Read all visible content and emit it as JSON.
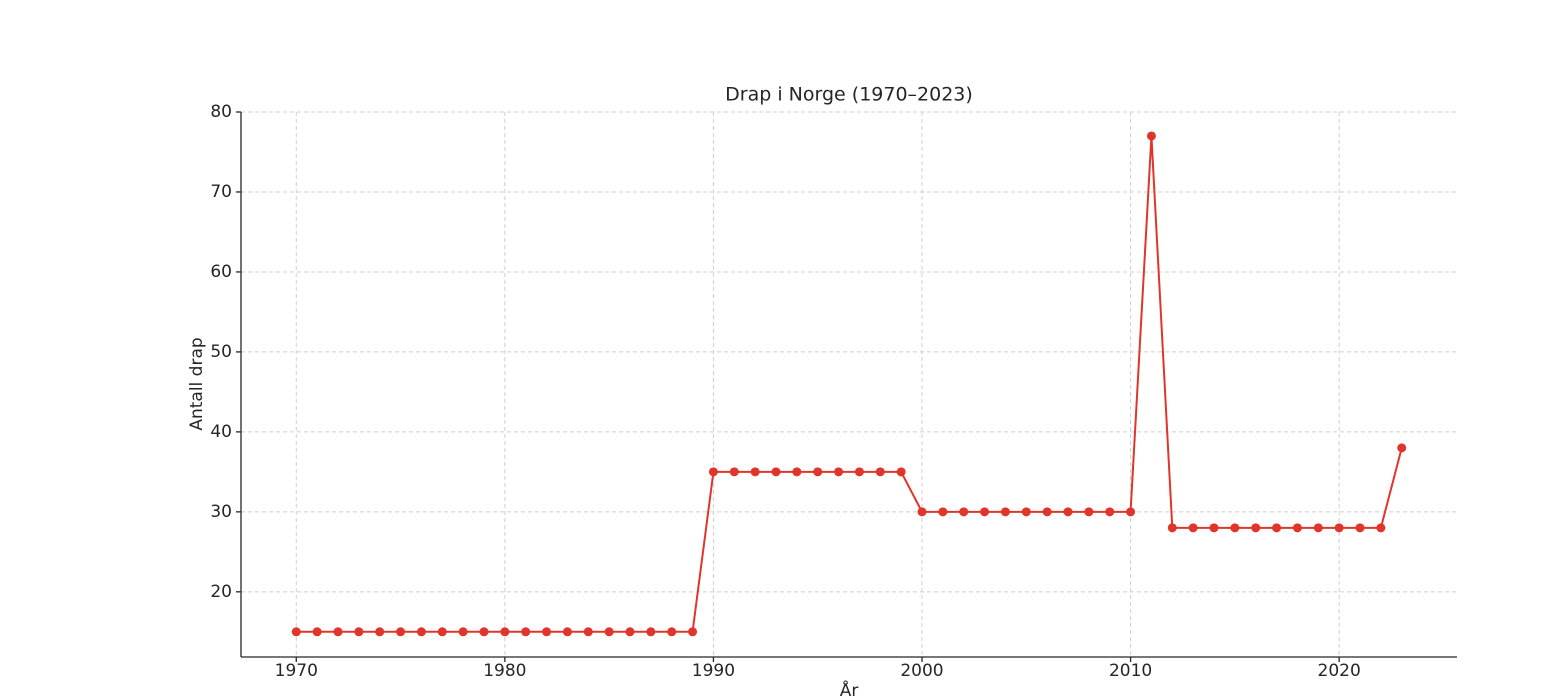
{
  "chart_data": {
    "type": "line",
    "title": "Drap i Norge (1970–2023)",
    "x_label": "År",
    "y_label": "Antall drap",
    "x": [
      1970,
      1971,
      1972,
      1973,
      1974,
      1975,
      1976,
      1977,
      1978,
      1979,
      1980,
      1981,
      1982,
      1983,
      1984,
      1985,
      1986,
      1987,
      1988,
      1989,
      1990,
      1991,
      1992,
      1993,
      1994,
      1995,
      1996,
      1997,
      1998,
      1999,
      2000,
      2001,
      2002,
      2003,
      2004,
      2005,
      2006,
      2007,
      2008,
      2009,
      2010,
      2011,
      2012,
      2013,
      2014,
      2015,
      2016,
      2017,
      2018,
      2019,
      2020,
      2021,
      2022,
      2023
    ],
    "series": [
      {
        "color": "#e0352b",
        "values": [
          15,
          15,
          15,
          15,
          15,
          15,
          15,
          15,
          15,
          15,
          15,
          15,
          15,
          15,
          15,
          15,
          15,
          15,
          15,
          15,
          35,
          35,
          35,
          35,
          35,
          35,
          35,
          35,
          35,
          35,
          30,
          30,
          30,
          30,
          30,
          30,
          30,
          30,
          30,
          30,
          30,
          77,
          28,
          28,
          28,
          28,
          28,
          28,
          28,
          28,
          28,
          28,
          28,
          38
        ]
      }
    ],
    "xlim": [
      1967.35,
      2025.65
    ],
    "ylim": [
      11.85,
      80
    ],
    "xticks": [
      1970,
      1980,
      1990,
      2000,
      2010,
      2020
    ],
    "yticks": [
      20,
      30,
      40,
      50,
      60,
      70,
      80
    ],
    "grid": true
  }
}
